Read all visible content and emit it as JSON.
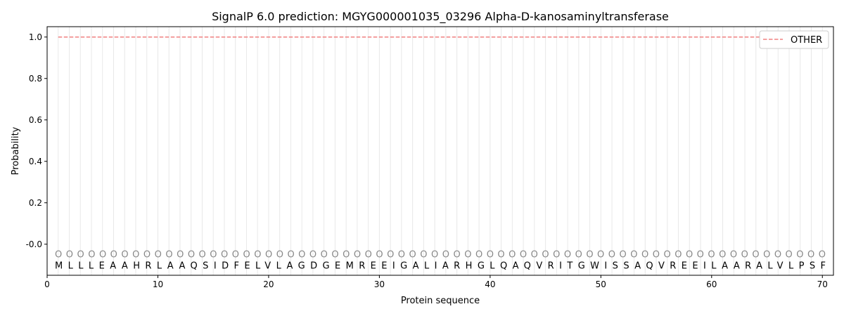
{
  "chart_data": {
    "type": "line",
    "title": "SignalP 6.0 prediction: MGYG000001035_03296 Alpha-D-kanosaminyltransferase",
    "xlabel": "Protein sequence",
    "ylabel": "Probability",
    "xlim": [
      0,
      71
    ],
    "ylim": [
      -0.15,
      1.05
    ],
    "xticks": [
      0,
      10,
      20,
      30,
      40,
      50,
      60,
      70
    ],
    "yticks": [
      "-0.0",
      "0.2",
      "0.4",
      "0.6",
      "0.8",
      "1.0"
    ],
    "yticks_values": [
      0,
      0.2,
      0.4,
      0.6,
      0.8,
      1.0
    ],
    "sequence": "MLLLEAAHRLAAQSIDFELVLAGDGEMREEIGALIARHGLQAQVRITGWISSAQVREEILAARALVLPSF",
    "predicted_labels": "OOOOOOOOOOOOOOOOOOOOOOOOOOOOOOOOOOOOOOOOOOOOOOOOOOOOOOOOOOOOOOOOOOOOOO",
    "series": [
      {
        "name": "OTHER",
        "color": "#f08080",
        "style": "dashed",
        "x_range": [
          1,
          70
        ],
        "value": 1.0
      }
    ],
    "legend": "top-right",
    "grid": "vertical lines at each residue"
  }
}
